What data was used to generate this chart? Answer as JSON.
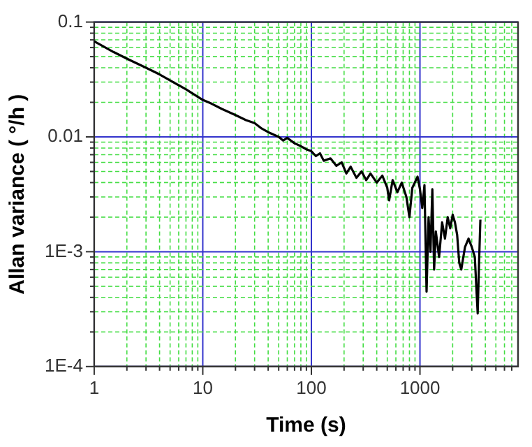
{
  "chart_data": {
    "type": "line",
    "xlabel": "Time (s)",
    "ylabel": "Allan variance ( °/h )",
    "log": "xy",
    "grid": true,
    "legend": false,
    "marker": "none",
    "line_style": "solid",
    "xlim": [
      1,
      8000
    ],
    "xticks": [
      1,
      {
        "value": 2,
        "label": null
      },
      {
        "value": 3,
        "label": null
      },
      {
        "value": 4,
        "label": null
      },
      {
        "value": 5,
        "label": null
      },
      {
        "value": 6,
        "label": null
      },
      {
        "value": 7,
        "label": null
      },
      {
        "value": 8,
        "label": null
      },
      {
        "value": 9,
        "label": null
      },
      10,
      {
        "value": 20,
        "label": null
      },
      {
        "value": 30,
        "label": null
      },
      {
        "value": 40,
        "label": null
      },
      {
        "value": 50,
        "label": null
      },
      {
        "value": 60,
        "label": null
      },
      {
        "value": 70,
        "label": null
      },
      {
        "value": 80,
        "label": null
      },
      {
        "value": 90,
        "label": null
      },
      100,
      {
        "value": 200,
        "label": null
      },
      {
        "value": 300,
        "label": null
      },
      {
        "value": 400,
        "label": null
      },
      {
        "value": 500,
        "label": null
      },
      {
        "value": 600,
        "label": null
      },
      {
        "value": 700,
        "label": null
      },
      {
        "value": 800,
        "label": null
      },
      {
        "value": 900,
        "label": null
      },
      1000,
      {
        "value": 2000,
        "label": null
      },
      {
        "value": 3000,
        "label": null
      },
      {
        "value": 4000,
        "label": null
      },
      {
        "value": 5000,
        "label": null
      },
      {
        "value": 6000,
        "label": null
      },
      {
        "value": 7000,
        "label": null
      }
    ],
    "ylim": [
      0.0001,
      0.1
    ],
    "yticks": [
      {
        "value": 0.0001,
        "label": "1E-4"
      },
      {
        "value": 0.0002,
        "label": null
      },
      {
        "value": 0.0003,
        "label": null
      },
      {
        "value": 0.0004,
        "label": null
      },
      {
        "value": 0.0005,
        "label": null
      },
      {
        "value": 0.0006,
        "label": null
      },
      {
        "value": 0.0007,
        "label": null
      },
      {
        "value": 0.0008,
        "label": null
      },
      {
        "value": 0.0009,
        "label": null
      },
      {
        "value": 0.001,
        "label": "1E-3"
      },
      {
        "value": 0.002,
        "label": null
      },
      {
        "value": 0.003,
        "label": null
      },
      {
        "value": 0.004,
        "label": null
      },
      {
        "value": 0.005,
        "label": null
      },
      {
        "value": 0.006,
        "label": null
      },
      {
        "value": 0.007,
        "label": null
      },
      {
        "value": 0.008,
        "label": null
      },
      {
        "value": 0.009,
        "label": null
      },
      0.01,
      {
        "value": 0.02,
        "label": null
      },
      {
        "value": 0.03,
        "label": null
      },
      {
        "value": 0.04,
        "label": null
      },
      {
        "value": 0.05,
        "label": null
      },
      {
        "value": 0.06,
        "label": null
      },
      {
        "value": 0.07,
        "label": null
      },
      {
        "value": 0.08,
        "label": null
      },
      {
        "value": 0.09,
        "label": null
      },
      0.1
    ],
    "series": [
      {
        "color": "#000000",
        "x": [
          1,
          1.5,
          2,
          3,
          4,
          5,
          7,
          10,
          12,
          15,
          20,
          25,
          30,
          35,
          40,
          50,
          55,
          60,
          70,
          80,
          90,
          100,
          110,
          120,
          130,
          150,
          170,
          190,
          210,
          230,
          260,
          290,
          320,
          350,
          400,
          450,
          500,
          520,
          560,
          620,
          680,
          750,
          800,
          850,
          950,
          1000,
          1050,
          1100,
          1150,
          1200,
          1250,
          1300,
          1350,
          1400,
          1500,
          1600,
          1700,
          1800,
          1900,
          2000,
          2100,
          2200,
          2300,
          2400,
          2600,
          2800,
          3000,
          3200,
          3300,
          3400,
          3500,
          3600
        ],
        "values": [
          0.068,
          0.055,
          0.048,
          0.04,
          0.035,
          0.031,
          0.026,
          0.021,
          0.0195,
          0.0175,
          0.0155,
          0.014,
          0.0132,
          0.0118,
          0.011,
          0.01,
          0.0093,
          0.0098,
          0.0088,
          0.0083,
          0.0078,
          0.0075,
          0.0068,
          0.0072,
          0.0062,
          0.0065,
          0.0056,
          0.006,
          0.0048,
          0.0055,
          0.0044,
          0.005,
          0.0042,
          0.0048,
          0.004,
          0.0046,
          0.0036,
          0.0028,
          0.0042,
          0.0033,
          0.004,
          0.003,
          0.002,
          0.0036,
          0.0045,
          0.0035,
          0.0024,
          0.0038,
          0.00045,
          0.002,
          0.001,
          0.0035,
          0.0007,
          0.0015,
          0.0009,
          0.0018,
          0.0013,
          0.002,
          0.0016,
          0.0021,
          0.0018,
          0.0014,
          0.0008,
          0.0007,
          0.0011,
          0.0013,
          0.0011,
          0.0009,
          0.0005,
          0.00029,
          0.0008,
          0.0019
        ]
      }
    ]
  }
}
